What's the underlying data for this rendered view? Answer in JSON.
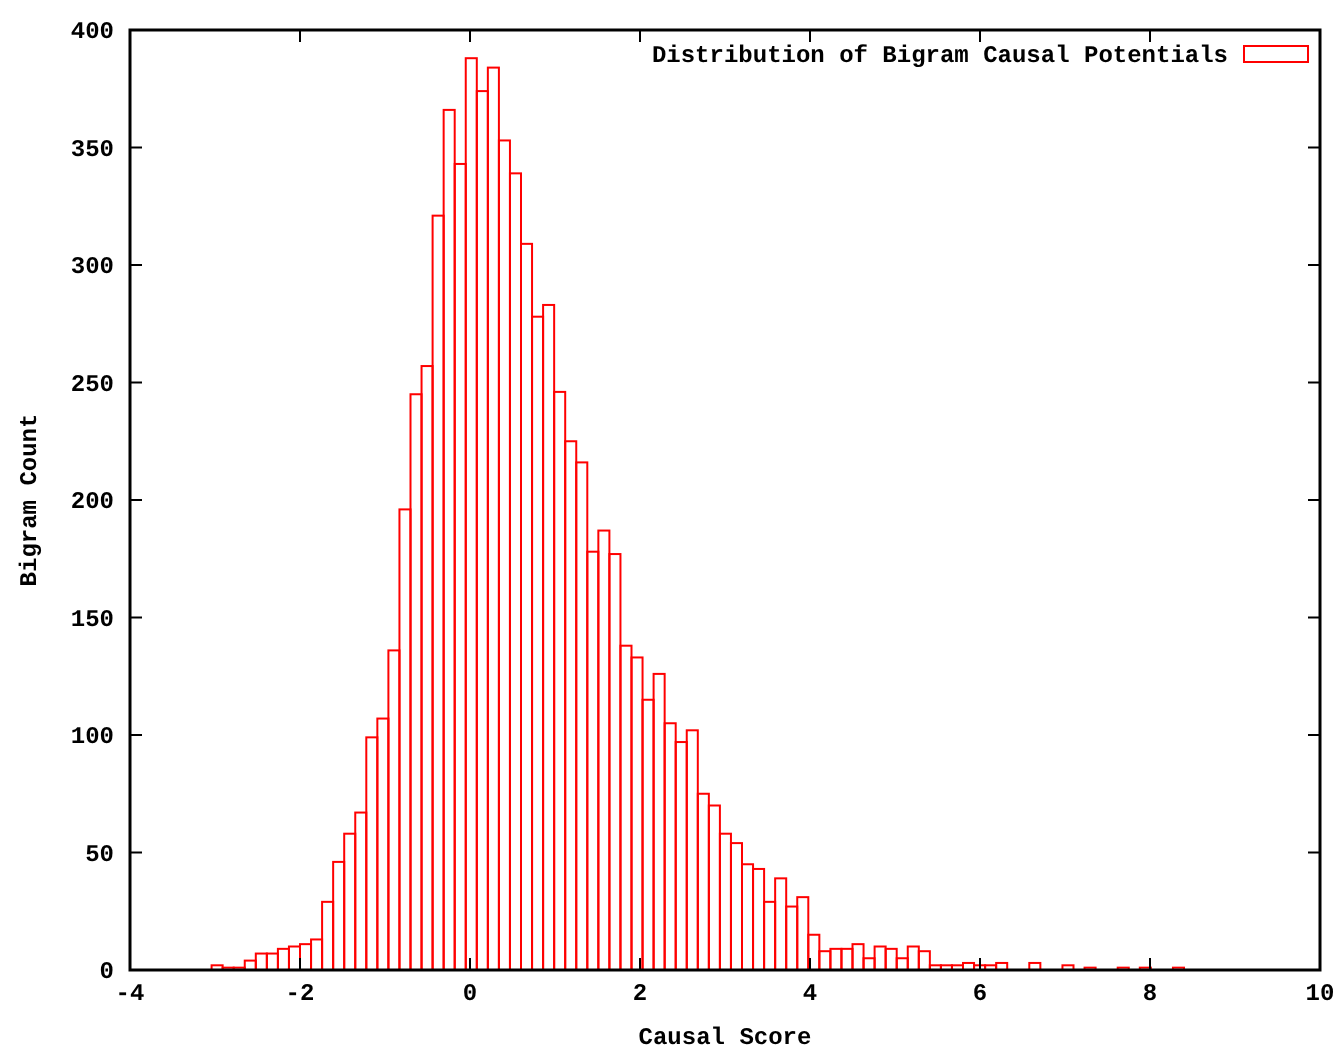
{
  "chart_data": {
    "type": "histogram",
    "xlabel": "Causal Score",
    "ylabel": "Bigram Count",
    "series": [
      {
        "name": "Distribution of Bigram Causal Potentials",
        "color": "#ff0000",
        "values": [
          2,
          1,
          1,
          4,
          7,
          7,
          9,
          10,
          11,
          13,
          29,
          46,
          58,
          67,
          99,
          107,
          136,
          196,
          245,
          257,
          321,
          366,
          343,
          388,
          374,
          384,
          353,
          339,
          309,
          278,
          283,
          246,
          225,
          216,
          178,
          187,
          177,
          138,
          133,
          115,
          126,
          105,
          97,
          102,
          75,
          70,
          58,
          54,
          45,
          43,
          29,
          39,
          27,
          31,
          15,
          8,
          9,
          9,
          11,
          5,
          10,
          9,
          5,
          10,
          8,
          2,
          2,
          2,
          3,
          2,
          2,
          3,
          0,
          0,
          3,
          0,
          0,
          2,
          0,
          1,
          0,
          0,
          1,
          0,
          1,
          0,
          0,
          1
        ]
      }
    ],
    "bins": [
      -3.04,
      -2.91,
      -2.78,
      -2.65,
      -2.52,
      -2.39,
      -2.26,
      -2.13,
      -2.0,
      -1.87,
      -1.74,
      -1.61,
      -1.48,
      -1.35,
      -1.22,
      -1.09,
      -0.96,
      -0.83,
      -0.7,
      -0.57,
      -0.44,
      -0.31,
      -0.18,
      -0.05,
      0.08,
      0.21,
      0.34,
      0.47,
      0.6,
      0.73,
      0.86,
      0.99,
      1.12,
      1.25,
      1.38,
      1.51,
      1.64,
      1.77,
      1.9,
      2.03,
      2.16,
      2.29,
      2.42,
      2.55,
      2.68,
      2.81,
      2.94,
      3.07,
      3.2,
      3.33,
      3.46,
      3.59,
      3.72,
      3.85,
      3.98,
      4.11,
      4.24,
      4.37,
      4.5,
      4.63,
      4.76,
      4.89,
      5.02,
      5.15,
      5.28,
      5.41,
      5.54,
      5.67,
      5.8,
      5.93,
      6.06,
      6.19,
      6.32,
      6.45,
      6.58,
      6.71,
      6.84,
      6.97,
      7.1,
      7.23,
      7.36,
      7.49,
      7.62,
      7.75,
      7.88,
      8.01,
      8.14,
      8.27,
      8.4
    ],
    "xlim": [
      -4,
      10
    ],
    "xticks": [
      -4,
      -2,
      0,
      2,
      4,
      6,
      8,
      10
    ],
    "ylim": [
      0,
      400
    ],
    "yticks": [
      0,
      50,
      100,
      150,
      200,
      250,
      300,
      350,
      400
    ],
    "grid": false,
    "legend": "top right"
  }
}
